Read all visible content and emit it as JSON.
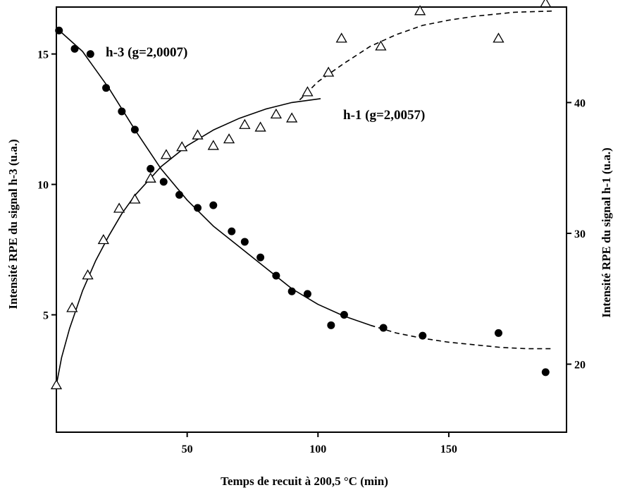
{
  "chart_data": {
    "type": "scatter",
    "title": "",
    "xlabel": "Temps de recuit à 200,5 °C (min)",
    "ylabel_left": "Intensité RPE du signal h-3 (u.a.)",
    "ylabel_right": "Intensité RPE du signal h-1 (u.a.)",
    "xlim": [
      0,
      195
    ],
    "ylim_left": [
      0.5,
      16.8
    ],
    "ylim_right": [
      14.8,
      47.3
    ],
    "x_ticks": [
      50,
      100,
      150
    ],
    "y_ticks_left": [
      5,
      10,
      15
    ],
    "y_ticks_right": [
      20,
      30,
      40
    ],
    "grid": false,
    "series": [
      {
        "name": "h-3 (g=2,0007)",
        "axis": "left",
        "marker": "filled-circle",
        "x": [
          1,
          7,
          13,
          19,
          25,
          30,
          36,
          41,
          47,
          54,
          60,
          67,
          72,
          78,
          84,
          90,
          96,
          105,
          110,
          125,
          140,
          169,
          187
        ],
        "y": [
          15.9,
          15.2,
          15.0,
          13.7,
          12.8,
          12.1,
          10.6,
          10.1,
          9.6,
          9.1,
          9.2,
          8.2,
          7.8,
          7.2,
          6.5,
          5.9,
          5.8,
          4.6,
          5.0,
          4.5,
          4.2,
          4.3,
          2.8
        ],
        "fit_solid": [
          [
            0,
            16.0
          ],
          [
            10,
            15.1
          ],
          [
            20,
            13.7
          ],
          [
            30,
            12.1
          ],
          [
            40,
            10.6
          ],
          [
            50,
            9.4
          ],
          [
            60,
            8.4
          ],
          [
            70,
            7.6
          ],
          [
            80,
            6.8
          ],
          [
            90,
            6.0
          ],
          [
            100,
            5.4
          ],
          [
            110,
            4.95
          ],
          [
            120,
            4.6
          ]
        ],
        "fit_dashed": [
          [
            120,
            4.6
          ],
          [
            130,
            4.3
          ],
          [
            140,
            4.1
          ],
          [
            150,
            3.95
          ],
          [
            160,
            3.85
          ],
          [
            170,
            3.75
          ],
          [
            180,
            3.7
          ],
          [
            190,
            3.7
          ]
        ]
      },
      {
        "name": "h-1 (g=2,0057)",
        "axis": "right",
        "marker": "open-triangle",
        "x": [
          0,
          6,
          12,
          18,
          24,
          30,
          36,
          42,
          48,
          54,
          60,
          66,
          72,
          78,
          84,
          90,
          96,
          104,
          109,
          124,
          139,
          169,
          187
        ],
        "y": [
          18.4,
          24.3,
          26.8,
          29.5,
          31.9,
          32.6,
          34.2,
          36.0,
          36.6,
          37.5,
          36.7,
          37.2,
          38.3,
          38.1,
          39.1,
          38.8,
          40.8,
          42.3,
          44.9,
          44.3,
          47.0,
          44.9,
          47.6
        ],
        "fit_solid": [
          [
            0,
            18.4
          ],
          [
            2,
            20.5
          ],
          [
            5,
            22.7
          ],
          [
            10,
            25.6
          ],
          [
            15,
            27.9
          ],
          [
            20,
            29.8
          ],
          [
            25,
            31.5
          ],
          [
            30,
            32.9
          ],
          [
            40,
            35.1
          ],
          [
            50,
            36.7
          ],
          [
            60,
            37.9
          ],
          [
            70,
            38.8
          ],
          [
            80,
            39.5
          ],
          [
            90,
            40.0
          ],
          [
            101,
            40.3
          ]
        ],
        "fit_dashed": [
          [
            93,
            40.2
          ],
          [
            100,
            41.6
          ],
          [
            110,
            43.0
          ],
          [
            120,
            44.3
          ],
          [
            130,
            45.2
          ],
          [
            140,
            45.9
          ],
          [
            150,
            46.3
          ],
          [
            160,
            46.6
          ],
          [
            175,
            46.9
          ],
          [
            190,
            47.0
          ]
        ]
      }
    ]
  }
}
